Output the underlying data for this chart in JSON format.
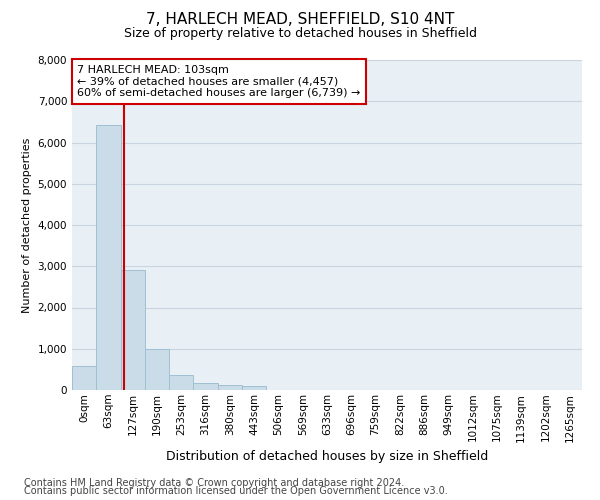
{
  "title": "7, HARLECH MEAD, SHEFFIELD, S10 4NT",
  "subtitle": "Size of property relative to detached houses in Sheffield",
  "xlabel": "Distribution of detached houses by size in Sheffield",
  "ylabel": "Number of detached properties",
  "footnote1": "Contains HM Land Registry data © Crown copyright and database right 2024.",
  "footnote2": "Contains public sector information licensed under the Open Government Licence v3.0.",
  "annotation_title": "7 HARLECH MEAD: 103sqm",
  "annotation_line1": "← 39% of detached houses are smaller (4,457)",
  "annotation_line2": "60% of semi-detached houses are larger (6,739) →",
  "bar_labels": [
    "0sqm",
    "63sqm",
    "127sqm",
    "190sqm",
    "253sqm",
    "316sqm",
    "380sqm",
    "443sqm",
    "506sqm",
    "569sqm",
    "633sqm",
    "696sqm",
    "759sqm",
    "822sqm",
    "886sqm",
    "949sqm",
    "1012sqm",
    "1075sqm",
    "1139sqm",
    "1202sqm",
    "1265sqm"
  ],
  "bar_values": [
    570,
    6420,
    2920,
    990,
    360,
    170,
    110,
    90,
    0,
    0,
    0,
    0,
    0,
    0,
    0,
    0,
    0,
    0,
    0,
    0,
    0
  ],
  "bar_color": "#c9dce8",
  "bar_edge_color": "#a0bfd4",
  "vline_color": "#cc0000",
  "vline_x": 1.625,
  "ylim": [
    0,
    8000
  ],
  "yticks": [
    0,
    1000,
    2000,
    3000,
    4000,
    5000,
    6000,
    7000,
    8000
  ],
  "grid_color": "#c8d4e0",
  "bg_color": "#e8eff5",
  "annotation_box_color": "#ffffff",
  "annotation_box_edge": "#cc0000",
  "title_fontsize": 11,
  "subtitle_fontsize": 9,
  "xlabel_fontsize": 9,
  "ylabel_fontsize": 8,
  "tick_fontsize": 7.5,
  "annotation_fontsize": 8,
  "footnote_fontsize": 7
}
